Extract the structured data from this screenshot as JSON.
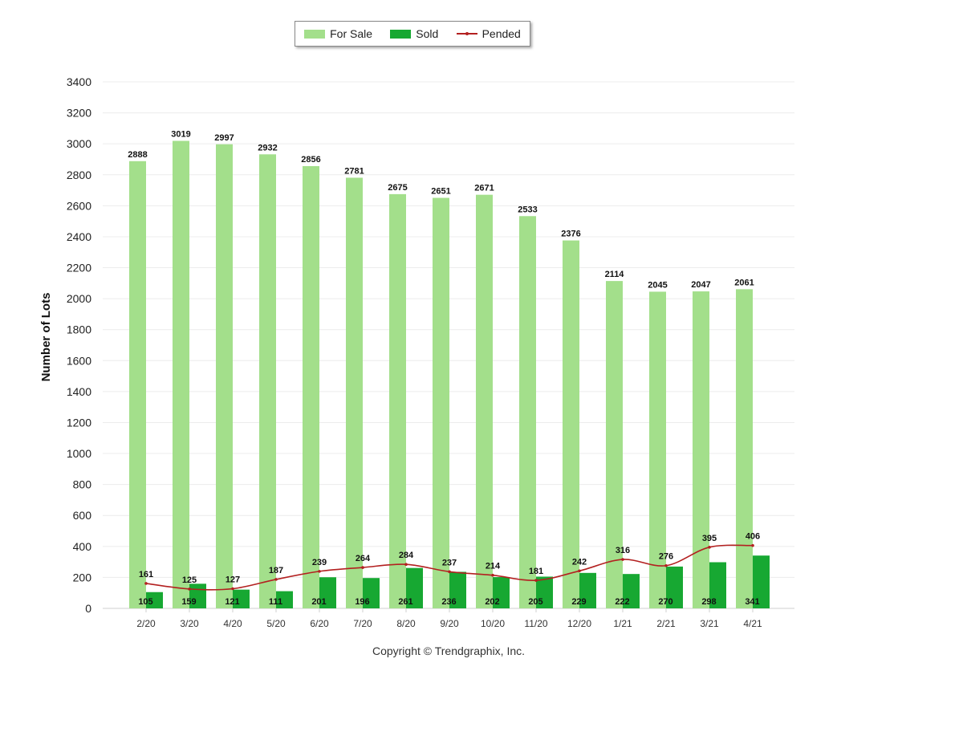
{
  "chart_data": {
    "type": "bar",
    "ylabel": "Number of Lots",
    "xlabel": "",
    "ylim": [
      0,
      3400
    ],
    "yticks": [
      0,
      200,
      400,
      600,
      800,
      1000,
      1200,
      1400,
      1600,
      1800,
      2000,
      2200,
      2400,
      2600,
      2800,
      3000,
      3200,
      3400
    ],
    "grid": true,
    "legend_position": "top-center",
    "categories": [
      "2/20",
      "3/20",
      "4/20",
      "5/20",
      "6/20",
      "7/20",
      "8/20",
      "9/20",
      "10/20",
      "11/20",
      "12/20",
      "1/21",
      "2/21",
      "3/21",
      "4/21"
    ],
    "series": [
      {
        "name": "For Sale",
        "type": "bar",
        "color": "#a3df8b",
        "values": [
          2888,
          3019,
          2997,
          2932,
          2856,
          2781,
          2675,
          2651,
          2671,
          2533,
          2376,
          2114,
          2045,
          2047,
          2061
        ]
      },
      {
        "name": "Sold",
        "type": "bar",
        "color": "#17a832",
        "values": [
          105,
          159,
          121,
          111,
          201,
          196,
          261,
          236,
          202,
          205,
          229,
          222,
          270,
          298,
          341
        ]
      },
      {
        "name": "Pended",
        "type": "line",
        "color": "#b32020",
        "values": [
          161,
          125,
          127,
          187,
          239,
          264,
          284,
          237,
          214,
          181,
          242,
          316,
          276,
          395,
          406
        ]
      }
    ]
  },
  "footer": {
    "copyright": "Copyright © Trendgraphix, Inc."
  }
}
